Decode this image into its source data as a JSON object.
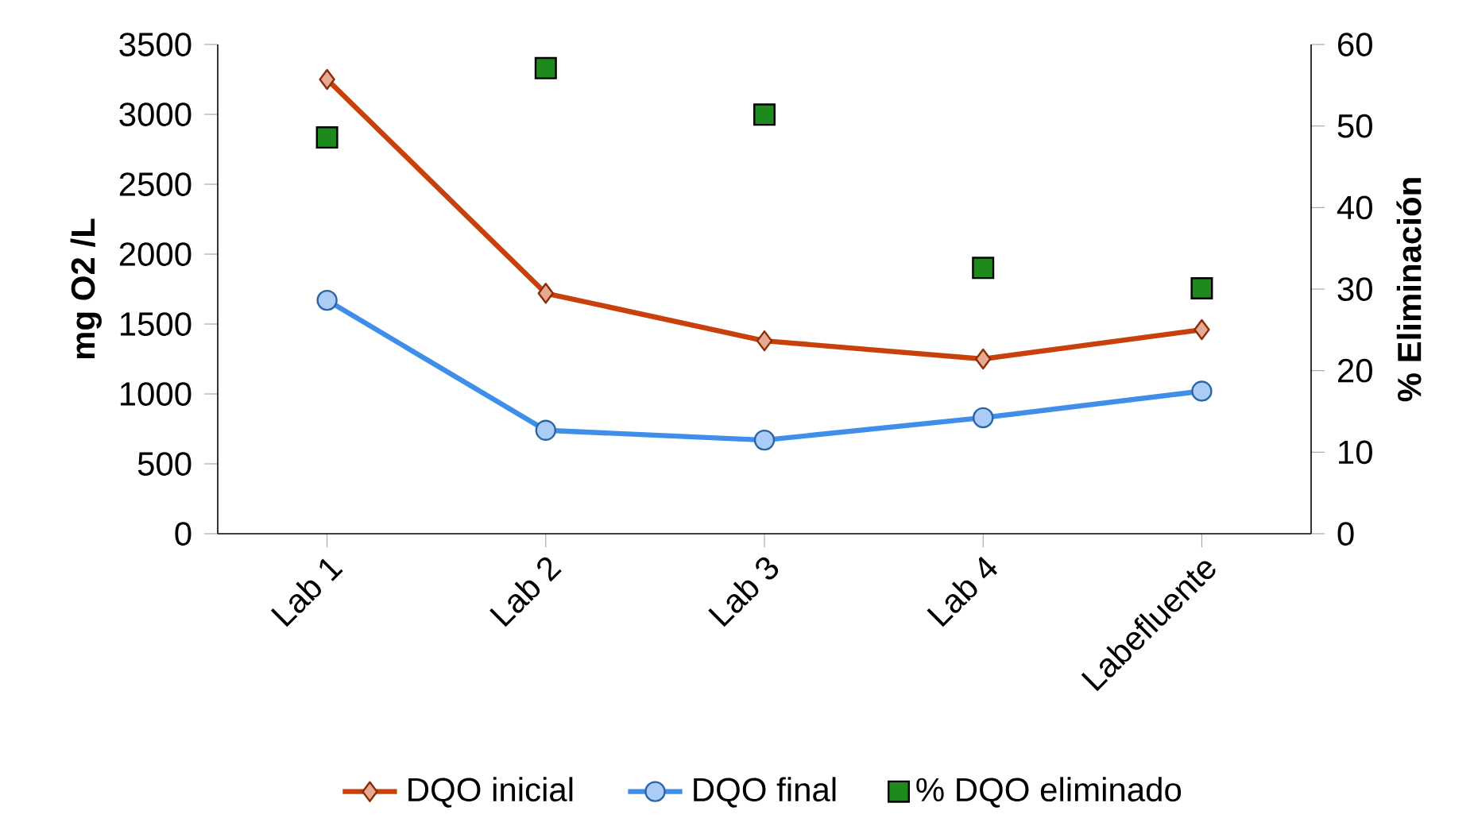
{
  "chart_data": {
    "type": "line",
    "ylabel": "mg O2 /L",
    "y2label": "% Eliminación",
    "categories": [
      "Lab 1",
      "Lab 2",
      "Lab 3",
      "Lab 4",
      "Labefluente"
    ],
    "series": [
      {
        "name": "DQO inicial",
        "color": "#c8400c",
        "marker": "diamond",
        "values": [
          3250,
          1720,
          1380,
          1250,
          1460
        ]
      },
      {
        "name": "DQO final",
        "color": "#3f8fea",
        "marker": "circle",
        "values": [
          1670,
          740,
          670,
          830,
          1020
        ]
      },
      {
        "name": "% DQO eliminado",
        "type": "scatter",
        "axis": "y2",
        "color": "#1e8a1e",
        "marker": "square",
        "values": [
          48.6,
          57.1,
          51.4,
          32.6,
          30.1
        ]
      }
    ],
    "ylim": [
      0,
      3500
    ],
    "yticks": [
      0,
      500,
      1000,
      1500,
      2000,
      2500,
      3000,
      3500
    ],
    "y2lim": [
      0,
      60
    ],
    "y2ticks": [
      0,
      10,
      20,
      30,
      40,
      50,
      60
    ],
    "legend": "bottom",
    "line_style": "solid"
  }
}
